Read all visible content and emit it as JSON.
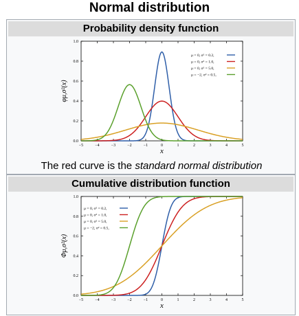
{
  "page": {
    "title": "Normal distribution"
  },
  "pdf": {
    "heading": "Probability density function",
    "caption_prefix": "The red curve is the ",
    "caption_emph": "standard normal distribution"
  },
  "cdf": {
    "heading": "Cumulative distribution function"
  },
  "chart_data": [
    {
      "type": "line",
      "title": "",
      "xlabel": "x",
      "ylabel": "φμ,σ²(x)",
      "xlim": [
        -5,
        5
      ],
      "ylim": [
        0,
        1.0
      ],
      "xticks": [
        "−5",
        "−4",
        "−3",
        "−2",
        "−1",
        "0",
        "1",
        "2",
        "3",
        "4",
        "5"
      ],
      "yticks": [
        "0.0",
        "0.2",
        "0.4",
        "0.6",
        "0.8",
        "1.0"
      ],
      "grid": false,
      "legend_position": "top-right",
      "series": [
        {
          "name": "μ = 0,  σ² = 0.2,",
          "mu": 0,
          "var": 0.2,
          "color": "#2e5ea8"
        },
        {
          "name": "μ = 0,  σ² = 1.0,",
          "mu": 0,
          "var": 1.0,
          "color": "#cc2020"
        },
        {
          "name": "μ = 0,  σ² = 5.0,",
          "mu": 0,
          "var": 5.0,
          "color": "#d9a024"
        },
        {
          "name": "μ = −2, σ² = 0.5,",
          "mu": -2,
          "var": 0.5,
          "color": "#5aa02c"
        }
      ]
    },
    {
      "type": "line",
      "title": "",
      "xlabel": "x",
      "ylabel": "Φμ,σ²(x)",
      "xlim": [
        -5,
        5
      ],
      "ylim": [
        0,
        1.0
      ],
      "xticks": [
        "−5",
        "−4",
        "−3",
        "−2",
        "−1",
        "0",
        "1",
        "2",
        "3",
        "4",
        "5"
      ],
      "yticks": [
        "0.0",
        "0.2",
        "0.4",
        "0.6",
        "0.8",
        "1.0"
      ],
      "grid": false,
      "legend_position": "top-left",
      "series": [
        {
          "name": "μ = 0,  σ² = 0.2,",
          "mu": 0,
          "var": 0.2,
          "color": "#2e5ea8"
        },
        {
          "name": "μ = 0,  σ² = 1.0,",
          "mu": 0,
          "var": 1.0,
          "color": "#cc2020"
        },
        {
          "name": "μ = 0,  σ² = 5.0,",
          "mu": 0,
          "var": 5.0,
          "color": "#d9a024"
        },
        {
          "name": "μ = −2, σ² = 0.5,",
          "mu": -2,
          "var": 0.5,
          "color": "#5aa02c"
        }
      ]
    }
  ]
}
